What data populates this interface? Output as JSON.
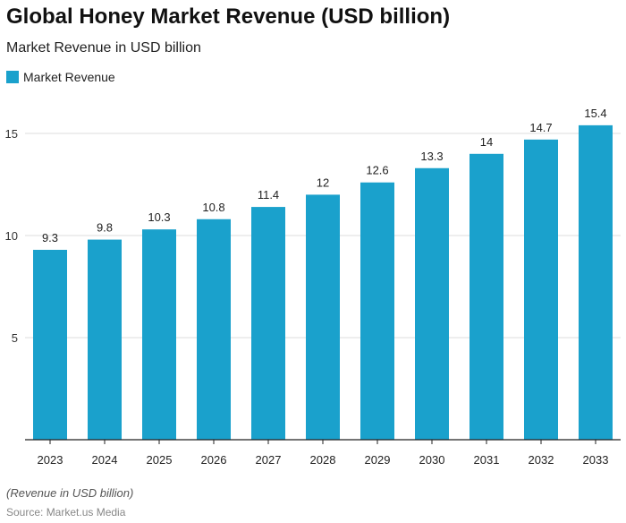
{
  "colors": {
    "bar": "#1aa1cc"
  },
  "chart_data": {
    "type": "bar",
    "title": "Global Honey Market Revenue (USD billion)",
    "subtitle": "Market Revenue in USD billion",
    "legend": [
      "Market Revenue"
    ],
    "legend_position": "top-left",
    "categories": [
      "2023",
      "2024",
      "2025",
      "2026",
      "2027",
      "2028",
      "2029",
      "2030",
      "2031",
      "2032",
      "2033"
    ],
    "series": [
      {
        "name": "Market Revenue",
        "values": [
          9.3,
          9.8,
          10.3,
          10.8,
          11.4,
          12,
          12.6,
          13.3,
          14,
          14.7,
          15.4
        ]
      }
    ],
    "data_labels": [
      "9.3",
      "9.8",
      "10.3",
      "10.8",
      "11.4",
      "12",
      "12.6",
      "13.3",
      "14",
      "14.7",
      "15.4"
    ],
    "yticks": [
      "5",
      "10",
      "15"
    ],
    "ylim": [
      0,
      16
    ],
    "grid": true,
    "note": "(Revenue in USD billion)",
    "source": "Source: Market.us Media"
  }
}
